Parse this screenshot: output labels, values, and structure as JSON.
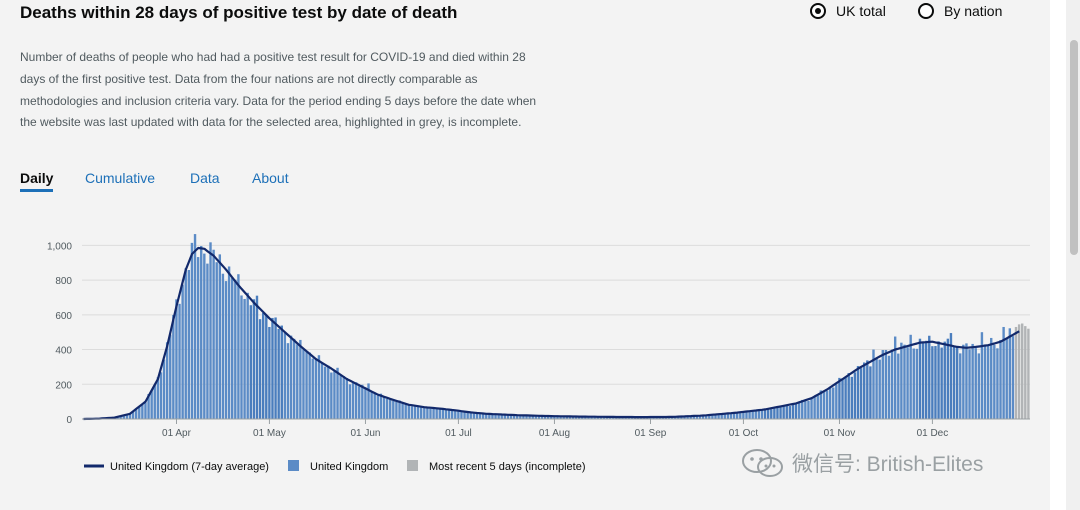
{
  "header": {
    "title": "Deaths within 28 days of positive test by date of death",
    "description": "Number of deaths of people who had had a positive test result for COVID-19 and died within 28 days of the first positive test. Data from the four nations are not directly comparable as methodologies and inclusion criteria vary. Data for the period ending 5 days before the date when the website was last updated with data for the selected area, highlighted in grey, is incomplete.",
    "radio_options": [
      {
        "label": "UK total",
        "selected": true
      },
      {
        "label": "By nation",
        "selected": false
      }
    ]
  },
  "tabs": [
    {
      "label": "Daily",
      "active": true
    },
    {
      "label": "Cumulative",
      "active": false
    },
    {
      "label": "Data",
      "active": false
    },
    {
      "label": "About",
      "active": false
    }
  ],
  "watermark": "微信号: British-Elites",
  "colors": {
    "bar": "#5b8bc6",
    "bar_dark": "#4a7dbd",
    "bar_incomplete": "#b1b4b6",
    "average_line": "#12296b",
    "grid": "#dcdcdc",
    "axis_text": "#505a5f"
  },
  "chart_data": {
    "type": "bar",
    "title": "Deaths within 28 days of positive test by date of death",
    "xlabel": "",
    "ylabel": "",
    "ylim": [
      0,
      1100
    ],
    "yticks": [
      0,
      200,
      400,
      600,
      800,
      1000
    ],
    "ytick_labels": [
      "0",
      "200",
      "400",
      "600",
      "800",
      "1,000"
    ],
    "x_start_day": 0,
    "x_end_day": 305,
    "xtick_days": [
      30,
      60,
      91,
      121,
      152,
      183,
      213,
      244,
      274
    ],
    "xtick_labels": [
      "01 Apr",
      "01 May",
      "01 Jun",
      "01 Jul",
      "01 Aug",
      "01 Sep",
      "01 Oct",
      "01 Nov",
      "01 Dec"
    ],
    "darker_ranges": [
      [
        54,
        64
      ],
      [
        220,
        230
      ],
      [
        244,
        254
      ],
      [
        270,
        282
      ]
    ],
    "average_knots": [
      [
        0,
        0
      ],
      [
        5,
        2
      ],
      [
        10,
        8
      ],
      [
        15,
        30
      ],
      [
        20,
        100
      ],
      [
        24,
        230
      ],
      [
        27,
        420
      ],
      [
        30,
        650
      ],
      [
        33,
        860
      ],
      [
        35,
        950
      ],
      [
        37,
        985
      ],
      [
        39,
        980
      ],
      [
        42,
        940
      ],
      [
        46,
        860
      ],
      [
        50,
        770
      ],
      [
        55,
        670
      ],
      [
        60,
        580
      ],
      [
        65,
        500
      ],
      [
        70,
        420
      ],
      [
        75,
        345
      ],
      [
        80,
        290
      ],
      [
        85,
        230
      ],
      [
        90,
        185
      ],
      [
        95,
        140
      ],
      [
        100,
        110
      ],
      [
        105,
        82
      ],
      [
        110,
        68
      ],
      [
        115,
        60
      ],
      [
        120,
        50
      ],
      [
        125,
        38
      ],
      [
        130,
        30
      ],
      [
        140,
        22
      ],
      [
        150,
        17
      ],
      [
        160,
        14
      ],
      [
        170,
        12
      ],
      [
        180,
        11
      ],
      [
        190,
        12
      ],
      [
        200,
        20
      ],
      [
        210,
        35
      ],
      [
        220,
        55
      ],
      [
        230,
        90
      ],
      [
        235,
        120
      ],
      [
        240,
        170
      ],
      [
        245,
        230
      ],
      [
        250,
        290
      ],
      [
        255,
        340
      ],
      [
        258,
        370
      ],
      [
        262,
        400
      ],
      [
        266,
        420
      ],
      [
        270,
        440
      ],
      [
        274,
        445
      ],
      [
        278,
        430
      ],
      [
        282,
        415
      ],
      [
        285,
        410
      ],
      [
        288,
        415
      ],
      [
        292,
        425
      ],
      [
        296,
        445
      ],
      [
        300,
        485
      ],
      [
        302,
        505
      ]
    ],
    "series": [
      {
        "name": "United Kingdom (7-day average)",
        "type": "line",
        "values": "7-day rolling average curve through average_knots"
      },
      {
        "name": "United Kingdom",
        "type": "bar",
        "values": "daily deaths; tracks the 7-day average with day-to-day noise"
      },
      {
        "name": "Most recent 5 days (incomplete)",
        "type": "bar",
        "days": [
          301,
          302,
          303,
          304,
          305
        ],
        "values": [
          530,
          545,
          550,
          535,
          520
        ]
      }
    ],
    "spikes": [
      [
        36,
        1065
      ],
      [
        57,
        575
      ],
      [
        72,
        390
      ],
      [
        82,
        295
      ],
      [
        92,
        205
      ],
      [
        255,
        400
      ],
      [
        262,
        475
      ],
      [
        267,
        485
      ],
      [
        280,
        495
      ],
      [
        290,
        500
      ],
      [
        297,
        530
      ]
    ],
    "legend": [
      {
        "label": "United Kingdom (7-day average)",
        "kind": "line"
      },
      {
        "label": "United Kingdom",
        "kind": "bar"
      },
      {
        "label": "Most recent 5 days (incomplete)",
        "kind": "bar-grey"
      }
    ],
    "legend_position": "bottom-left"
  }
}
